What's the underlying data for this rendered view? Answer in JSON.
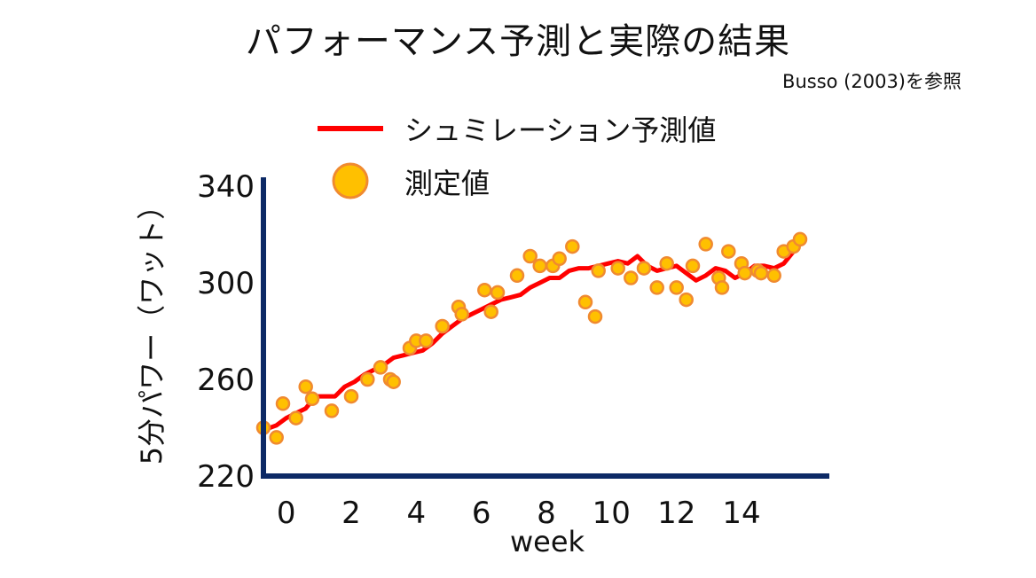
{
  "chart_data": {
    "type": "line",
    "title": "パフォーマンス予測と実際の結果",
    "subtitle": "Busso (2003)を参照",
    "xlabel": "week",
    "ylabel": "5分パワー（ワット）",
    "xlim": [
      -0.7,
      16.7
    ],
    "ylim": [
      220,
      340
    ],
    "xticks": [
      0,
      2,
      4,
      6,
      8,
      10,
      12,
      14
    ],
    "yticks": [
      220,
      260,
      300,
      340
    ],
    "grid": false,
    "legend": "top-left",
    "colors": {
      "prediction": "#ff0000",
      "measured_fill": "#ffc000",
      "measured_edge": "#f08a30",
      "axes": "#0d2a66"
    },
    "series": [
      {
        "name": "シュミレーション予測値",
        "kind": "line",
        "x": [
          -0.7,
          -0.3,
          0.0,
          0.3,
          0.6,
          0.9,
          1.2,
          1.5,
          1.8,
          2.1,
          2.4,
          2.7,
          3.0,
          3.3,
          3.6,
          3.9,
          4.2,
          4.5,
          4.8,
          5.1,
          5.4,
          5.7,
          6.0,
          6.3,
          6.6,
          6.9,
          7.2,
          7.5,
          7.8,
          8.1,
          8.4,
          8.7,
          9.0,
          9.3,
          9.6,
          9.9,
          10.2,
          10.5,
          10.8,
          11.1,
          11.4,
          11.7,
          12.0,
          12.3,
          12.6,
          12.9,
          13.2,
          13.5,
          13.8,
          14.1,
          14.4,
          14.7,
          15.0,
          15.3,
          15.6
        ],
        "y": [
          239,
          241,
          244,
          246,
          248,
          253,
          253,
          253,
          257,
          259,
          262,
          264,
          266,
          269,
          270,
          271,
          272,
          275,
          279,
          282,
          285,
          287,
          289,
          291,
          293,
          294,
          295,
          298,
          300,
          302,
          302,
          305,
          306,
          306,
          307,
          308,
          309,
          308,
          311,
          307,
          305,
          306,
          307,
          304,
          301,
          303,
          306,
          305,
          302,
          304,
          307,
          307,
          306,
          308,
          313
        ]
      },
      {
        "name": "測定値",
        "kind": "scatter",
        "x": [
          -0.7,
          -0.3,
          -0.1,
          0.3,
          0.6,
          0.8,
          1.4,
          2.0,
          2.5,
          2.9,
          3.2,
          3.3,
          3.8,
          4.0,
          4.3,
          4.8,
          5.3,
          5.4,
          6.1,
          6.3,
          6.5,
          7.1,
          7.5,
          7.8,
          8.2,
          8.4,
          8.8,
          9.2,
          9.5,
          9.6,
          10.2,
          10.6,
          11.0,
          11.4,
          11.7,
          12.0,
          12.3,
          12.5,
          12.9,
          13.3,
          13.4,
          13.6,
          14.0,
          14.1,
          14.5,
          14.6,
          15.0,
          15.3,
          15.6,
          15.8
        ],
        "y": [
          240,
          236,
          250,
          244,
          257,
          252,
          247,
          253,
          260,
          265,
          260,
          259,
          273,
          276,
          276,
          282,
          290,
          287,
          297,
          288,
          296,
          303,
          311,
          307,
          307,
          310,
          315,
          292,
          286,
          305,
          306,
          302,
          306,
          298,
          308,
          298,
          293,
          307,
          316,
          302,
          298,
          313,
          308,
          304,
          305,
          304,
          303,
          313,
          315,
          318
        ]
      }
    ]
  }
}
